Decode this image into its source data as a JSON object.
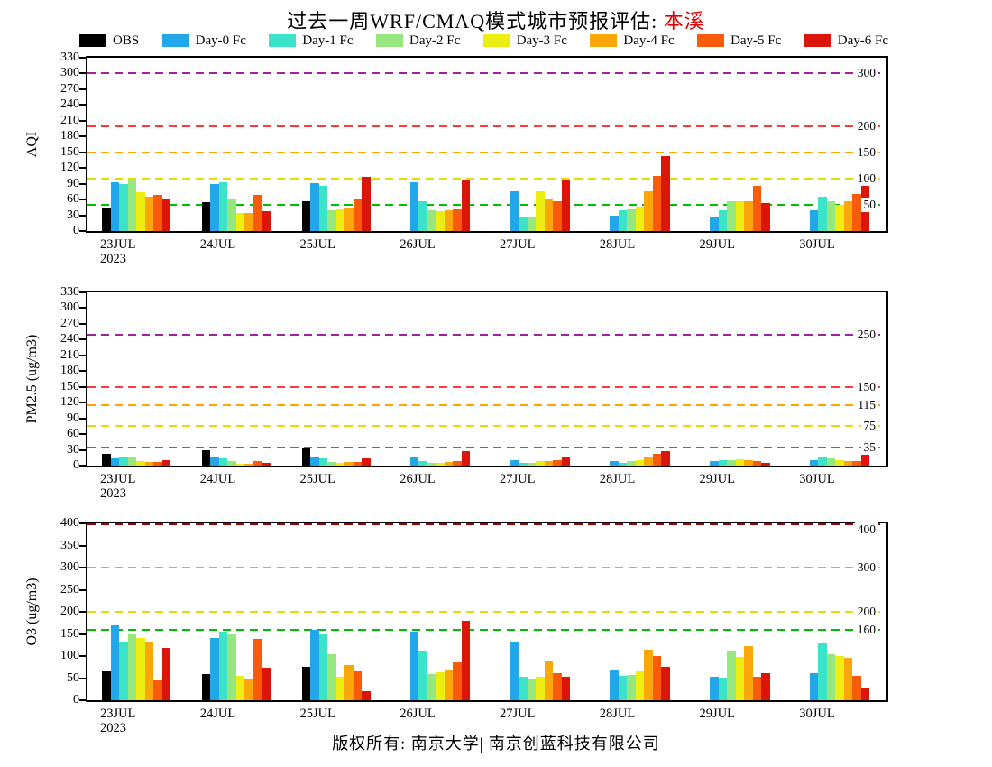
{
  "title": {
    "prefix": "过去一周WRF/CMAQ模式城市预报评估: ",
    "city": "本溪"
  },
  "legend": [
    {
      "label": "OBS",
      "color": "#000000"
    },
    {
      "label": "Day-0 Fc",
      "color": "#23A7EB"
    },
    {
      "label": "Day-1 Fc",
      "color": "#3BE4C9"
    },
    {
      "label": "Day-2 Fc",
      "color": "#96E77E"
    },
    {
      "label": "Day-3 Fc",
      "color": "#ECEE11"
    },
    {
      "label": "Day-4 Fc",
      "color": "#FBA70B"
    },
    {
      "label": "Day-5 Fc",
      "color": "#F95B0B"
    },
    {
      "label": "Day-6 Fc",
      "color": "#DB1508"
    }
  ],
  "footer": "版权所有: 南京大学| 南京创蓝科技有限公司",
  "chart_data": [
    {
      "type": "bar",
      "ylabel": "AQI",
      "ylim": [
        0,
        330
      ],
      "yticks": [
        0,
        30,
        60,
        90,
        120,
        150,
        180,
        210,
        240,
        270,
        300,
        330
      ],
      "grid": false,
      "legend_position": "top",
      "categories": [
        "23JUL",
        "24JUL",
        "25JUL",
        "26JUL",
        "27JUL",
        "28JUL",
        "29JUL",
        "30JUL"
      ],
      "category_subs": [
        "2023",
        "",
        "",
        "",
        "",
        "",
        "",
        ""
      ],
      "ref_lines": [
        {
          "value": 50,
          "color": "#00BE00",
          "label": "50"
        },
        {
          "value": 100,
          "color": "#E0E000",
          "label": "100"
        },
        {
          "value": 150,
          "color": "#FFA500",
          "label": "150"
        },
        {
          "value": 200,
          "color": "#FF3A3A",
          "label": "200"
        },
        {
          "value": 300,
          "color": "#A020A0",
          "label": "300"
        }
      ],
      "series": [
        {
          "name": "OBS",
          "values": [
            45,
            55,
            57,
            null,
            null,
            null,
            null,
            null
          ]
        },
        {
          "name": "Day-0 Fc",
          "values": [
            93,
            90,
            91,
            92,
            76,
            30,
            26,
            40
          ]
        },
        {
          "name": "Day-1 Fc",
          "values": [
            89,
            92,
            86,
            57,
            25,
            40,
            40,
            66
          ]
        },
        {
          "name": "Day-2 Fc",
          "values": [
            96,
            62,
            40,
            40,
            25,
            41,
            56,
            56
          ]
        },
        {
          "name": "Day-3 Fc",
          "values": [
            74,
            34,
            42,
            37,
            75,
            46,
            56,
            50
          ]
        },
        {
          "name": "Day-4 Fc",
          "values": [
            66,
            35,
            45,
            40,
            61,
            76,
            56,
            56
          ]
        },
        {
          "name": "Day-5 Fc",
          "values": [
            68,
            68,
            60,
            42,
            56,
            105,
            86,
            71
          ]
        },
        {
          "name": "Day-6 Fc",
          "values": [
            62,
            38,
            103,
            97,
            98,
            142,
            53,
            86
          ]
        }
      ]
    },
    {
      "type": "bar",
      "ylabel": "PM2.5 (ug/m3)",
      "ylim": [
        0,
        330
      ],
      "yticks": [
        0,
        30,
        60,
        90,
        120,
        150,
        180,
        210,
        240,
        270,
        300,
        330
      ],
      "grid": false,
      "legend_position": "top",
      "categories": [
        "23JUL",
        "24JUL",
        "25JUL",
        "26JUL",
        "27JUL",
        "28JUL",
        "29JUL",
        "30JUL"
      ],
      "category_subs": [
        "2023",
        "",
        "",
        "",
        "",
        "",
        "",
        ""
      ],
      "ref_lines": [
        {
          "value": 35,
          "color": "#00BE00",
          "label": "35"
        },
        {
          "value": 75,
          "color": "#E0E000",
          "label": "75"
        },
        {
          "value": 115,
          "color": "#FFA500",
          "label": "115"
        },
        {
          "value": 150,
          "color": "#FF3A3A",
          "label": "150"
        },
        {
          "value": 250,
          "color": "#A020A0",
          "label": "250"
        }
      ],
      "series": [
        {
          "name": "OBS",
          "values": [
            22,
            30,
            35,
            null,
            null,
            null,
            null,
            null
          ]
        },
        {
          "name": "Day-0 Fc",
          "values": [
            13,
            17,
            15,
            15,
            10,
            8,
            8,
            10
          ]
        },
        {
          "name": "Day-1 Fc",
          "values": [
            18,
            13,
            13,
            8,
            5,
            6,
            10,
            17
          ]
        },
        {
          "name": "Day-2 Fc",
          "values": [
            18,
            8,
            7,
            5,
            5,
            8,
            10,
            14
          ]
        },
        {
          "name": "Day-3 Fc",
          "values": [
            8,
            4,
            5,
            5,
            8,
            10,
            12,
            10
          ]
        },
        {
          "name": "Day-4 Fc",
          "values": [
            7,
            4,
            7,
            7,
            8,
            15,
            10,
            8
          ]
        },
        {
          "name": "Day-5 Fc",
          "values": [
            7,
            8,
            7,
            9,
            10,
            23,
            8,
            8
          ]
        },
        {
          "name": "Day-6 Fc",
          "values": [
            10,
            5,
            13,
            27,
            17,
            27,
            5,
            27
          ]
        }
      ]
    },
    {
      "type": "bar",
      "ylabel": "O3 (ug/m3)",
      "ylim": [
        0,
        400
      ],
      "yticks": [
        0,
        50,
        100,
        150,
        200,
        250,
        300,
        350,
        400
      ],
      "grid": false,
      "legend_position": "top",
      "categories": [
        "23JUL",
        "24JUL",
        "25JUL",
        "26JUL",
        "27JUL",
        "28JUL",
        "29JUL",
        "30JUL"
      ],
      "category_subs": [
        "2023",
        "",
        "",
        "",
        "",
        "",
        "",
        ""
      ],
      "ref_lines": [
        {
          "value": 160,
          "color": "#00BE00",
          "label": "160"
        },
        {
          "value": 200,
          "color": "#E0E000",
          "label": "200"
        },
        {
          "value": 300,
          "color": "#FFA500",
          "label": "300"
        },
        {
          "value": 400,
          "color": "#A00000",
          "label": "400"
        }
      ],
      "series": [
        {
          "name": "OBS",
          "values": [
            66,
            60,
            75,
            null,
            null,
            null,
            null,
            null
          ]
        },
        {
          "name": "Day-0 Fc",
          "values": [
            170,
            140,
            160,
            155,
            133,
            68,
            53,
            62
          ]
        },
        {
          "name": "Day-1 Fc",
          "values": [
            130,
            155,
            150,
            113,
            53,
            55,
            52,
            128
          ]
        },
        {
          "name": "Day-2 Fc",
          "values": [
            150,
            148,
            105,
            60,
            48,
            58,
            110,
            105
          ]
        },
        {
          "name": "Day-3 Fc",
          "values": [
            140,
            55,
            53,
            63,
            53,
            65,
            98,
            100
          ]
        },
        {
          "name": "Day-4 Fc",
          "values": [
            130,
            50,
            80,
            70,
            90,
            115,
            123,
            95
          ]
        },
        {
          "name": "Day-5 Fc",
          "values": [
            45,
            138,
            65,
            85,
            62,
            100,
            53,
            55
          ]
        },
        {
          "name": "Day-6 Fc",
          "values": [
            118,
            73,
            20,
            180,
            53,
            75,
            62,
            28
          ]
        }
      ]
    }
  ]
}
